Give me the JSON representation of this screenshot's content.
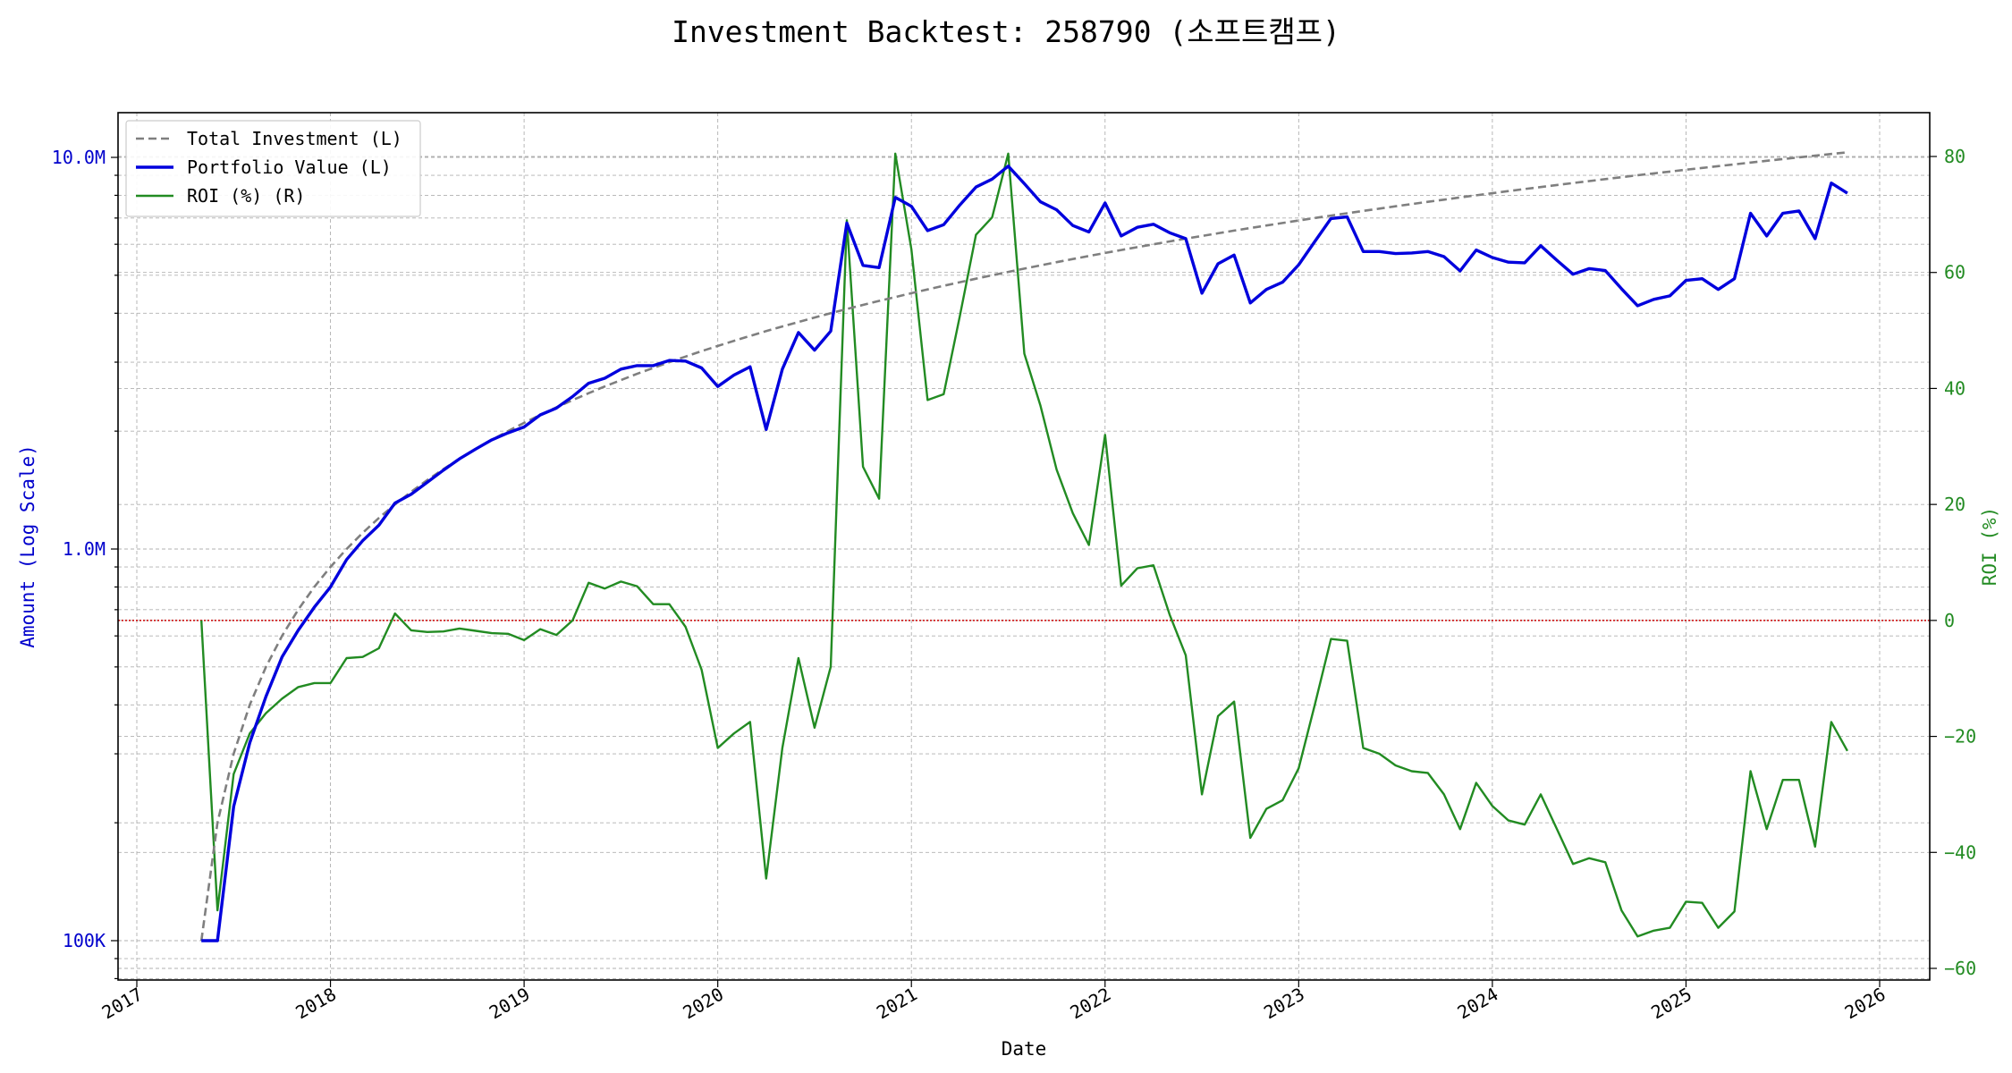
{
  "chart_data": {
    "type": "line",
    "title": "Investment Backtest: 258790 (소프트캠프)",
    "xlabel": "Date",
    "ylabel_left": "Amount (Log Scale)",
    "ylabel_right": "ROI (%)",
    "left_axis": {
      "scale": "log",
      "ylim": [
        80000,
        13000000
      ],
      "ticks": [
        100000,
        1000000,
        10000000
      ],
      "tick_labels": [
        "100K",
        "1.0M",
        "10.0M"
      ],
      "color": "#0000cc"
    },
    "right_axis": {
      "scale": "linear",
      "ylim": [
        -60,
        80
      ],
      "ticks": [
        -60,
        -40,
        -20,
        0,
        20,
        40,
        60,
        80
      ],
      "tick_labels": [
        "−60",
        "−40",
        "−20",
        "0",
        "20",
        "40",
        "60",
        "80"
      ],
      "color": "#228B22"
    },
    "x_ticks": [
      "2017",
      "2018",
      "2019",
      "2020",
      "2021",
      "2022",
      "2023",
      "2024",
      "2025",
      "2026"
    ],
    "grid": true,
    "legend_position": "top-left",
    "zero_line": {
      "value": 0,
      "axis": "right",
      "color": "#cc0000",
      "style": "dotted"
    },
    "series": [
      {
        "name": "Total Investment (L)",
        "axis": "left",
        "color": "#7f7f7f",
        "style": "dashed",
        "x": [
          "2017-05",
          "2017-06",
          "2017-07",
          "2017-08",
          "2017-09",
          "2017-10",
          "2017-11",
          "2017-12",
          "2018-01",
          "2018-02",
          "2018-03",
          "2018-04",
          "2018-05",
          "2018-06",
          "2018-07",
          "2018-08",
          "2018-09",
          "2018-10",
          "2018-11",
          "2018-12",
          "2019-01",
          "2019-02",
          "2019-03",
          "2019-04",
          "2019-05",
          "2019-06",
          "2019-07",
          "2019-08",
          "2019-09",
          "2019-10",
          "2019-11",
          "2019-12",
          "2020-01",
          "2020-02",
          "2020-03",
          "2020-04",
          "2020-05",
          "2020-06",
          "2020-07",
          "2020-08",
          "2020-09",
          "2020-10",
          "2020-11",
          "2020-12",
          "2021-01",
          "2021-02",
          "2021-03",
          "2021-04",
          "2021-05",
          "2021-06",
          "2021-07",
          "2021-08",
          "2021-09",
          "2021-10",
          "2021-11",
          "2021-12",
          "2022-01",
          "2022-02",
          "2022-03",
          "2022-04",
          "2022-05",
          "2022-06",
          "2022-07",
          "2022-08",
          "2022-09",
          "2022-10",
          "2022-11",
          "2022-12",
          "2023-01",
          "2023-02",
          "2023-03",
          "2023-04",
          "2023-05",
          "2023-06",
          "2023-07",
          "2023-08",
          "2023-09",
          "2023-10",
          "2023-11",
          "2023-12",
          "2024-01",
          "2024-02",
          "2024-03",
          "2024-04",
          "2024-05",
          "2024-06",
          "2024-07",
          "2024-08",
          "2024-09",
          "2024-10",
          "2024-11",
          "2024-12",
          "2025-01",
          "2025-02",
          "2025-03",
          "2025-04",
          "2025-05",
          "2025-06",
          "2025-07",
          "2025-08",
          "2025-09",
          "2025-10",
          "2025-11"
        ],
        "values": [
          100000,
          200000,
          300000,
          400000,
          500000,
          600000,
          700000,
          800000,
          900000,
          1000000,
          1100000,
          1200000,
          1300000,
          1400000,
          1500000,
          1600000,
          1700000,
          1800000,
          1900000,
          2000000,
          2100000,
          2200000,
          2300000,
          2400000,
          2500000,
          2600000,
          2700000,
          2800000,
          2900000,
          3000000,
          3100000,
          3200000,
          3300000,
          3400000,
          3500000,
          3600000,
          3700000,
          3800000,
          3900000,
          4000000,
          4100000,
          4200000,
          4300000,
          4400000,
          4500000,
          4600000,
          4700000,
          4800000,
          4900000,
          5000000,
          5100000,
          5200000,
          5300000,
          5400000,
          5500000,
          5600000,
          5700000,
          5800000,
          5900000,
          6000000,
          6100000,
          6200000,
          6300000,
          6400000,
          6500000,
          6600000,
          6700000,
          6800000,
          6900000,
          7000000,
          7100000,
          7200000,
          7300000,
          7400000,
          7500000,
          7600000,
          7700000,
          7800000,
          7900000,
          8000000,
          8100000,
          8200000,
          8300000,
          8400000,
          8500000,
          8600000,
          8700000,
          8800000,
          8900000,
          9000000,
          9100000,
          9200000,
          9300000,
          9400000,
          9500000,
          9600000,
          9700000,
          9800000,
          9900000,
          10000000,
          10100000,
          10200000,
          10300000
        ]
      },
      {
        "name": "Portfolio Value (L)",
        "axis": "left",
        "color": "#0000dd",
        "style": "solid",
        "x": [
          "2017-05",
          "2017-06",
          "2017-07",
          "2017-08",
          "2017-09",
          "2017-10",
          "2017-11",
          "2017-12",
          "2018-01",
          "2018-02",
          "2018-03",
          "2018-04",
          "2018-05",
          "2018-06",
          "2018-07",
          "2018-08",
          "2018-09",
          "2018-10",
          "2018-11",
          "2018-12",
          "2019-01",
          "2019-02",
          "2019-03",
          "2019-04",
          "2019-05",
          "2019-06",
          "2019-07",
          "2019-08",
          "2019-09",
          "2019-10",
          "2019-11",
          "2019-12",
          "2020-01",
          "2020-02",
          "2020-03",
          "2020-04",
          "2020-05",
          "2020-06",
          "2020-07",
          "2020-08",
          "2020-09",
          "2020-10",
          "2020-11",
          "2020-12",
          "2021-01",
          "2021-02",
          "2021-03",
          "2021-04",
          "2021-05",
          "2021-06",
          "2021-07",
          "2021-08",
          "2021-09",
          "2021-10",
          "2021-11",
          "2021-12",
          "2022-01",
          "2022-02",
          "2022-03",
          "2022-04",
          "2022-05",
          "2022-06",
          "2022-07",
          "2022-08",
          "2022-09",
          "2022-10",
          "2022-11",
          "2022-12",
          "2023-01",
          "2023-02",
          "2023-03",
          "2023-04",
          "2023-05",
          "2023-06",
          "2023-07",
          "2023-08",
          "2023-09",
          "2023-10",
          "2023-11",
          "2023-12",
          "2024-01",
          "2024-02",
          "2024-03",
          "2024-04",
          "2024-05",
          "2024-06",
          "2024-07",
          "2024-08",
          "2024-09",
          "2024-10",
          "2024-11",
          "2024-12",
          "2025-01",
          "2025-02",
          "2025-03",
          "2025-04",
          "2025-05",
          "2025-06",
          "2025-07",
          "2025-08",
          "2025-09",
          "2025-10",
          "2025-11"
        ],
        "values": [
          100000,
          100000,
          220000,
          320000,
          420000,
          530000,
          620000,
          710000,
          800000,
          940000,
          1050000,
          1150000,
          1310000,
          1380000,
          1480000,
          1590000,
          1700000,
          1800000,
          1900000,
          1980000,
          2050000,
          2200000,
          2290000,
          2450000,
          2650000,
          2730000,
          2880000,
          2940000,
          2940000,
          3030000,
          3020000,
          2900000,
          2600000,
          2780000,
          2920000,
          2020000,
          2880000,
          3570000,
          3220000,
          3600000,
          6800000,
          5300000,
          5230000,
          7900000,
          7500000,
          6500000,
          6730000,
          7560000,
          8400000,
          8800000,
          9500000,
          8570000,
          7700000,
          7350000,
          6700000,
          6450000,
          7650000,
          6300000,
          6630000,
          6750000,
          6420000,
          6200000,
          4500000,
          5350000,
          5630000,
          4250000,
          4600000,
          4800000,
          5320000,
          6100000,
          6980000,
          7050000,
          5750000,
          5750000,
          5680000,
          5700000,
          5750000,
          5580000,
          5130000,
          5800000,
          5550000,
          5400000,
          5380000,
          5950000,
          5460000,
          5030000,
          5200000,
          5140000,
          4620000,
          4180000,
          4340000,
          4430000,
          4850000,
          4900000,
          4600000,
          4900000,
          7200000,
          6300000,
          7200000,
          7300000,
          6200000,
          8600000,
          8100000
        ]
      },
      {
        "name": "ROI (%) (R)",
        "axis": "right",
        "color": "#228B22",
        "style": "solid",
        "x": [
          "2017-05",
          "2017-06",
          "2017-07",
          "2017-08",
          "2017-09",
          "2017-10",
          "2017-11",
          "2017-12",
          "2018-01",
          "2018-02",
          "2018-03",
          "2018-04",
          "2018-05",
          "2018-06",
          "2018-07",
          "2018-08",
          "2018-09",
          "2018-10",
          "2018-11",
          "2018-12",
          "2019-01",
          "2019-02",
          "2019-03",
          "2019-04",
          "2019-05",
          "2019-06",
          "2019-07",
          "2019-08",
          "2019-09",
          "2019-10",
          "2019-11",
          "2019-12",
          "2020-01",
          "2020-02",
          "2020-03",
          "2020-04",
          "2020-05",
          "2020-06",
          "2020-07",
          "2020-08",
          "2020-09",
          "2020-10",
          "2020-11",
          "2020-12",
          "2021-01",
          "2021-02",
          "2021-03",
          "2021-04",
          "2021-05",
          "2021-06",
          "2021-07",
          "2021-08",
          "2021-09",
          "2021-10",
          "2021-11",
          "2021-12",
          "2022-01",
          "2022-02",
          "2022-03",
          "2022-04",
          "2022-05",
          "2022-06",
          "2022-07",
          "2022-08",
          "2022-09",
          "2022-10",
          "2022-11",
          "2022-12",
          "2023-01",
          "2023-02",
          "2023-03",
          "2023-04",
          "2023-05",
          "2023-06",
          "2023-07",
          "2023-08",
          "2023-09",
          "2023-10",
          "2023-11",
          "2023-12",
          "2024-01",
          "2024-02",
          "2024-03",
          "2024-04",
          "2024-05",
          "2024-06",
          "2024-07",
          "2024-08",
          "2024-09",
          "2024-10",
          "2024-11",
          "2024-12",
          "2025-01",
          "2025-02",
          "2025-03",
          "2025-04",
          "2025-05",
          "2025-06",
          "2025-07",
          "2025-08",
          "2025-09",
          "2025-10",
          "2025-11"
        ],
        "values": [
          0,
          -50,
          -26.5,
          -19.5,
          -16,
          -13.5,
          -11.5,
          -10.8,
          -10.8,
          -6.5,
          -6.3,
          -4.8,
          1.2,
          -1.7,
          -2,
          -1.9,
          -1.4,
          -1.8,
          -2.2,
          -2.3,
          -3.4,
          -1.5,
          -2.5,
          0,
          6.5,
          5.5,
          6.7,
          5.9,
          2.8,
          2.8,
          -1.1,
          -8.5,
          -22,
          -19.5,
          -17.5,
          -44.5,
          -22,
          -6.5,
          -18.5,
          -8,
          69,
          26.5,
          21,
          80.5,
          64,
          38,
          39,
          52.5,
          66.5,
          69.5,
          80.5,
          46,
          37,
          26,
          18.5,
          13,
          32,
          6,
          9,
          9.5,
          1,
          -6,
          -30,
          -16.5,
          -14,
          -37.5,
          -32.5,
          -31,
          -25.5,
          -14.5,
          -3.2,
          -3.5,
          -22,
          -23,
          -25,
          -26,
          -26.3,
          -30,
          -36,
          -28,
          -32,
          -34.5,
          -35.2,
          -30,
          -36,
          -42,
          -41,
          -41.7,
          -50,
          -54.5,
          -53.5,
          -53,
          -48.5,
          -48.7,
          -53,
          -50.2,
          -26,
          -36,
          -27.5,
          -27.5,
          -39,
          -17.5,
          -22.5
        ]
      }
    ]
  }
}
